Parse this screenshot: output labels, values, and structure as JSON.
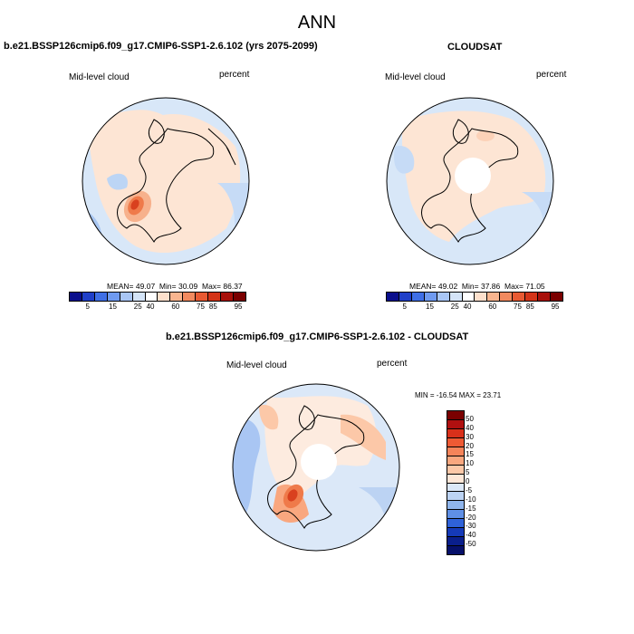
{
  "title": "ANN",
  "panels": [
    {
      "case_title": "b.e21.BSSP126cmip6.f09_g17.CMIP6-SSP1-2.6.102 (yrs 2075-2099)",
      "left_label": "Mid-level cloud",
      "right_label": "percent",
      "stats": {
        "mean_label": "MEAN=",
        "mean": "49.07",
        "min_label": "Min=",
        "min": "30.09",
        "max_label": "Max=",
        "max": "86.37"
      }
    },
    {
      "case_title": "CLOUDSAT",
      "left_label": "Mid-level cloud",
      "right_label": "percent",
      "stats": {
        "mean_label": "MEAN=",
        "mean": "49.02",
        "min_label": "Min=",
        "min": "37.86",
        "max_label": "Max=",
        "max": "71.05"
      }
    },
    {
      "case_title": "b.e21.BSSP126cmip6.f09_g17.CMIP6-SSP1-2.6.102 - CLOUDSAT",
      "left_label": "Mid-level cloud",
      "right_label": "percent",
      "minmax": "MIN = -16.54 MAX =  23.71"
    }
  ],
  "colorbar_abs": {
    "ticks": [
      "5",
      "15",
      "25",
      "40",
      "60",
      "75",
      "85",
      "95"
    ],
    "colors": [
      "#0a0f8c",
      "#1f3fc8",
      "#3f6fe6",
      "#6f9af0",
      "#a9c6f5",
      "#d4e4f8",
      "#ffffff",
      "#fde0cc",
      "#f9b58f",
      "#f28a5f",
      "#e85a33",
      "#d33418",
      "#a8100a",
      "#7a0000"
    ]
  },
  "colorbar_diff": {
    "ticks": [
      "50",
      "40",
      "30",
      "20",
      "15",
      "10",
      "5",
      "0",
      "-5",
      "-10",
      "-15",
      "-20",
      "-30",
      "-40",
      "-50"
    ],
    "colors": [
      "#7a0000",
      "#b01010",
      "#d9301a",
      "#ee5a34",
      "#f5845a",
      "#f9a77f",
      "#fcc8a8",
      "#fde7d8",
      "#dbe8f8",
      "#bcd3f3",
      "#8fb5ec",
      "#5f8fe5",
      "#2f62d8",
      "#153ab8",
      "#0a1f8c",
      "#06106a"
    ]
  },
  "map_colors": {
    "ocean": "#ffffff",
    "land_outline": "#000000"
  }
}
